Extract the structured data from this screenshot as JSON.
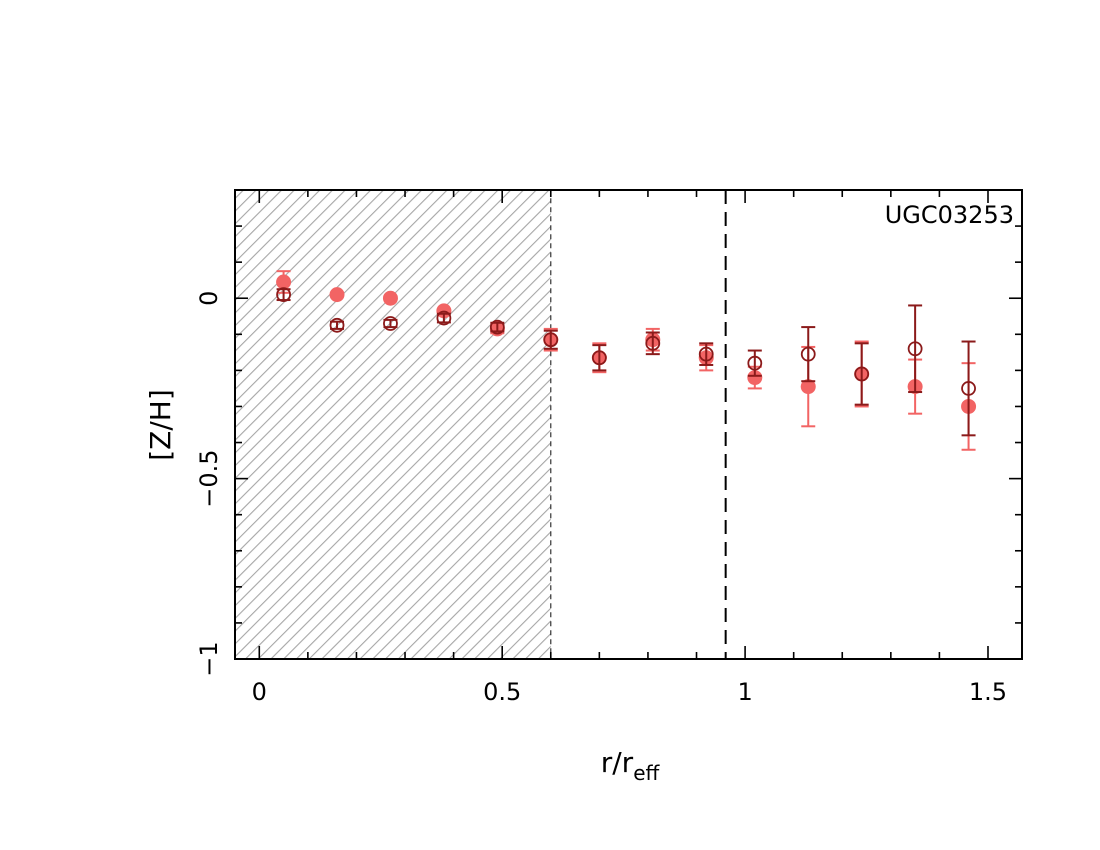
{
  "chart_data": {
    "type": "scatter",
    "title": "",
    "annotation": "UGC03253",
    "xlabel": {
      "main": "r/r",
      "subscript": "eff"
    },
    "ylabel": "[Z/H]",
    "xlim": [
      -0.05,
      1.57
    ],
    "ylim": [
      -1.0,
      0.3
    ],
    "xticks": [
      0,
      0.5,
      1,
      1.5
    ],
    "xtick_labels": [
      "0",
      "0.5",
      "1",
      "1.5"
    ],
    "yticks": [
      0,
      -0.5,
      -1
    ],
    "ytick_labels": [
      "0",
      "−0.5",
      "−1"
    ],
    "grid": false,
    "hatched_region": {
      "x": [
        -0.05,
        0.6
      ]
    },
    "vertical_line": {
      "x": 0.96,
      "style": "dashed"
    },
    "colors": {
      "filled": "#f26464",
      "open": "#8b1a1a",
      "hatch": "#a6a6a6"
    },
    "series": [
      {
        "marker": "filled-circle",
        "x": [
          0.05,
          0.16,
          0.27,
          0.38,
          0.49,
          0.6,
          0.7,
          0.81,
          0.92,
          1.02,
          1.13,
          1.24,
          1.35,
          1.46
        ],
        "y": [
          0.045,
          0.01,
          0.0,
          -0.035,
          -0.085,
          -0.115,
          -0.165,
          -0.115,
          -0.165,
          -0.22,
          -0.245,
          -0.21,
          -0.245,
          -0.3
        ],
        "err": [
          0.03,
          0.0,
          0.0,
          0.0,
          0.012,
          0.03,
          0.04,
          0.03,
          0.035,
          0.03,
          0.11,
          0.09,
          0.075,
          0.12
        ]
      },
      {
        "marker": "open-circle",
        "x": [
          0.05,
          0.16,
          0.27,
          0.38,
          0.49,
          0.6,
          0.7,
          0.81,
          0.92,
          1.02,
          1.13,
          1.24,
          1.35,
          1.46
        ],
        "y": [
          0.01,
          -0.075,
          -0.07,
          -0.055,
          -0.08,
          -0.115,
          -0.165,
          -0.125,
          -0.155,
          -0.18,
          -0.155,
          -0.21,
          -0.14,
          -0.25
        ],
        "err": [
          0.015,
          0.01,
          0.01,
          0.012,
          0.012,
          0.025,
          0.035,
          0.03,
          0.03,
          0.035,
          0.075,
          0.085,
          0.12,
          0.13
        ]
      }
    ]
  }
}
